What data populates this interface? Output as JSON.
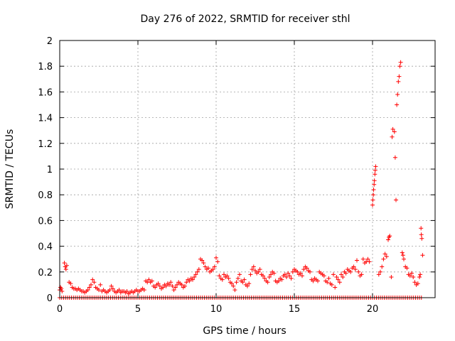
{
  "chart_data": {
    "type": "scatter",
    "title": "Day 276 of 2022, SRMTID for receiver sthl",
    "xlabel": "GPS time / hours",
    "ylabel": "SRMTID / TECUs",
    "xlim": [
      0,
      24
    ],
    "ylim": [
      0,
      2
    ],
    "x_ticks": [
      "0",
      "5",
      "10",
      "15",
      "20"
    ],
    "y_ticks": [
      "0",
      "0.2",
      "0.4",
      "0.6",
      "0.8",
      "1",
      "1.2",
      "1.4",
      "1.6",
      "1.8",
      "2"
    ],
    "x_tick_values": [
      0,
      5,
      10,
      15,
      20
    ],
    "y_tick_values": [
      0,
      0.2,
      0.4,
      0.6,
      0.8,
      1,
      1.2,
      1.4,
      1.6,
      1.8,
      2
    ],
    "grid": true,
    "marker": "+",
    "color": "#ff0000",
    "series": [
      {
        "name": "",
        "points": [
          [
            0.0,
            0.06
          ],
          [
            0.05,
            0.08
          ],
          [
            0.1,
            0.07
          ],
          [
            0.15,
            0.05
          ],
          [
            0.3,
            0.27
          ],
          [
            0.35,
            0.24
          ],
          [
            0.4,
            0.22
          ],
          [
            0.45,
            0.25
          ],
          [
            0.6,
            0.12
          ],
          [
            0.7,
            0.11
          ],
          [
            0.8,
            0.08
          ],
          [
            0.9,
            0.07
          ],
          [
            1.0,
            0.07
          ],
          [
            1.1,
            0.06
          ],
          [
            1.2,
            0.07
          ],
          [
            1.3,
            0.06
          ],
          [
            1.4,
            0.05
          ],
          [
            1.5,
            0.05
          ],
          [
            1.6,
            0.04
          ],
          [
            1.7,
            0.05
          ],
          [
            1.8,
            0.06
          ],
          [
            1.9,
            0.08
          ],
          [
            2.0,
            0.1
          ],
          [
            2.1,
            0.14
          ],
          [
            2.2,
            0.12
          ],
          [
            2.3,
            0.08
          ],
          [
            2.4,
            0.07
          ],
          [
            2.5,
            0.06
          ],
          [
            2.6,
            0.1
          ],
          [
            2.7,
            0.05
          ],
          [
            2.8,
            0.06
          ],
          [
            2.9,
            0.05
          ],
          [
            3.0,
            0.04
          ],
          [
            3.1,
            0.05
          ],
          [
            3.2,
            0.06
          ],
          [
            3.3,
            0.09
          ],
          [
            3.4,
            0.07
          ],
          [
            3.5,
            0.05
          ],
          [
            3.6,
            0.04
          ],
          [
            3.7,
            0.05
          ],
          [
            3.8,
            0.06
          ],
          [
            3.9,
            0.04
          ],
          [
            4.0,
            0.05
          ],
          [
            4.1,
            0.05
          ],
          [
            4.2,
            0.04
          ],
          [
            4.3,
            0.05
          ],
          [
            4.4,
            0.03
          ],
          [
            4.5,
            0.04
          ],
          [
            4.6,
            0.05
          ],
          [
            4.7,
            0.04
          ],
          [
            4.8,
            0.05
          ],
          [
            4.9,
            0.06
          ],
          [
            5.0,
            0.05
          ],
          [
            5.1,
            0.05
          ],
          [
            5.2,
            0.06
          ],
          [
            5.3,
            0.07
          ],
          [
            5.4,
            0.06
          ],
          [
            5.5,
            0.13
          ],
          [
            5.6,
            0.12
          ],
          [
            5.7,
            0.14
          ],
          [
            5.8,
            0.12
          ],
          [
            5.9,
            0.13
          ],
          [
            6.0,
            0.09
          ],
          [
            6.1,
            0.08
          ],
          [
            6.2,
            0.1
          ],
          [
            6.3,
            0.11
          ],
          [
            6.4,
            0.09
          ],
          [
            6.5,
            0.07
          ],
          [
            6.6,
            0.08
          ],
          [
            6.7,
            0.1
          ],
          [
            6.8,
            0.09
          ],
          [
            6.9,
            0.11
          ],
          [
            7.0,
            0.1
          ],
          [
            7.1,
            0.12
          ],
          [
            7.2,
            0.09
          ],
          [
            7.3,
            0.06
          ],
          [
            7.4,
            0.08
          ],
          [
            7.5,
            0.1
          ],
          [
            7.6,
            0.12
          ],
          [
            7.7,
            0.11
          ],
          [
            7.8,
            0.1
          ],
          [
            7.9,
            0.08
          ],
          [
            8.0,
            0.09
          ],
          [
            8.1,
            0.12
          ],
          [
            8.2,
            0.14
          ],
          [
            8.3,
            0.13
          ],
          [
            8.4,
            0.15
          ],
          [
            8.5,
            0.14
          ],
          [
            8.6,
            0.16
          ],
          [
            8.7,
            0.18
          ],
          [
            8.8,
            0.2
          ],
          [
            8.9,
            0.22
          ],
          [
            9.0,
            0.3
          ],
          [
            9.1,
            0.29
          ],
          [
            9.2,
            0.27
          ],
          [
            9.3,
            0.24
          ],
          [
            9.4,
            0.22
          ],
          [
            9.5,
            0.23
          ],
          [
            9.6,
            0.2
          ],
          [
            9.7,
            0.21
          ],
          [
            9.8,
            0.22
          ],
          [
            9.9,
            0.24
          ],
          [
            10.0,
            0.31
          ],
          [
            10.1,
            0.28
          ],
          [
            10.2,
            0.17
          ],
          [
            10.3,
            0.15
          ],
          [
            10.4,
            0.14
          ],
          [
            10.5,
            0.18
          ],
          [
            10.6,
            0.16
          ],
          [
            10.7,
            0.17
          ],
          [
            10.8,
            0.15
          ],
          [
            10.9,
            0.12
          ],
          [
            11.0,
            0.11
          ],
          [
            11.1,
            0.09
          ],
          [
            11.2,
            0.06
          ],
          [
            11.3,
            0.12
          ],
          [
            11.4,
            0.15
          ],
          [
            11.5,
            0.18
          ],
          [
            11.6,
            0.13
          ],
          [
            11.7,
            0.12
          ],
          [
            11.8,
            0.14
          ],
          [
            11.9,
            0.1
          ],
          [
            12.0,
            0.09
          ],
          [
            12.1,
            0.11
          ],
          [
            12.2,
            0.18
          ],
          [
            12.3,
            0.22
          ],
          [
            12.4,
            0.24
          ],
          [
            12.5,
            0.21
          ],
          [
            12.6,
            0.19
          ],
          [
            12.7,
            0.2
          ],
          [
            12.8,
            0.22
          ],
          [
            12.9,
            0.18
          ],
          [
            13.0,
            0.17
          ],
          [
            13.1,
            0.15
          ],
          [
            13.2,
            0.13
          ],
          [
            13.3,
            0.12
          ],
          [
            13.4,
            0.16
          ],
          [
            13.5,
            0.18
          ],
          [
            13.6,
            0.2
          ],
          [
            13.7,
            0.19
          ],
          [
            13.8,
            0.13
          ],
          [
            13.9,
            0.12
          ],
          [
            14.0,
            0.13
          ],
          [
            14.1,
            0.15
          ],
          [
            14.2,
            0.14
          ],
          [
            14.3,
            0.17
          ],
          [
            14.4,
            0.18
          ],
          [
            14.5,
            0.16
          ],
          [
            14.6,
            0.19
          ],
          [
            14.7,
            0.17
          ],
          [
            14.8,
            0.15
          ],
          [
            14.9,
            0.2
          ],
          [
            15.0,
            0.22
          ],
          [
            15.1,
            0.21
          ],
          [
            15.2,
            0.2
          ],
          [
            15.3,
            0.18
          ],
          [
            15.4,
            0.19
          ],
          [
            15.5,
            0.17
          ],
          [
            15.6,
            0.22
          ],
          [
            15.7,
            0.24
          ],
          [
            15.8,
            0.23
          ],
          [
            15.9,
            0.21
          ],
          [
            16.0,
            0.2
          ],
          [
            16.1,
            0.14
          ],
          [
            16.2,
            0.13
          ],
          [
            16.3,
            0.15
          ],
          [
            16.4,
            0.14
          ],
          [
            16.5,
            0.13
          ],
          [
            16.6,
            0.2
          ],
          [
            16.7,
            0.19
          ],
          [
            16.8,
            0.18
          ],
          [
            16.9,
            0.17
          ],
          [
            17.0,
            0.13
          ],
          [
            17.1,
            0.12
          ],
          [
            17.2,
            0.15
          ],
          [
            17.3,
            0.11
          ],
          [
            17.4,
            0.1
          ],
          [
            17.5,
            0.18
          ],
          [
            17.6,
            0.08
          ],
          [
            17.7,
            0.16
          ],
          [
            17.8,
            0.14
          ],
          [
            17.9,
            0.12
          ],
          [
            18.0,
            0.18
          ],
          [
            18.1,
            0.16
          ],
          [
            18.2,
            0.2
          ],
          [
            18.3,
            0.19
          ],
          [
            18.4,
            0.22
          ],
          [
            18.5,
            0.21
          ],
          [
            18.6,
            0.2
          ],
          [
            18.7,
            0.23
          ],
          [
            18.8,
            0.24
          ],
          [
            18.9,
            0.22
          ],
          [
            19.0,
            0.29
          ],
          [
            19.1,
            0.2
          ],
          [
            19.2,
            0.17
          ],
          [
            19.3,
            0.18
          ],
          [
            19.4,
            0.3
          ],
          [
            19.5,
            0.27
          ],
          [
            19.6,
            0.28
          ],
          [
            19.7,
            0.3
          ],
          [
            19.8,
            0.28
          ],
          [
            20.0,
            0.72
          ],
          [
            20.02,
            0.76
          ],
          [
            20.05,
            0.8
          ],
          [
            20.07,
            0.84
          ],
          [
            20.1,
            0.88
          ],
          [
            20.12,
            0.91
          ],
          [
            20.15,
            0.96
          ],
          [
            20.17,
            0.99
          ],
          [
            20.2,
            1.02
          ],
          [
            20.4,
            0.18
          ],
          [
            20.5,
            0.2
          ],
          [
            20.6,
            0.24
          ],
          [
            20.7,
            0.3
          ],
          [
            20.8,
            0.34
          ],
          [
            20.9,
            0.32
          ],
          [
            21.0,
            0.45
          ],
          [
            21.05,
            0.47
          ],
          [
            21.1,
            0.48
          ],
          [
            21.2,
            0.16
          ],
          [
            21.25,
            1.25
          ],
          [
            21.3,
            1.31
          ],
          [
            21.4,
            1.29
          ],
          [
            21.45,
            1.09
          ],
          [
            21.5,
            0.76
          ],
          [
            21.55,
            1.5
          ],
          [
            21.6,
            1.58
          ],
          [
            21.65,
            1.68
          ],
          [
            21.7,
            1.72
          ],
          [
            21.75,
            1.8
          ],
          [
            21.8,
            1.83
          ],
          [
            21.9,
            0.35
          ],
          [
            21.95,
            0.33
          ],
          [
            22.0,
            0.3
          ],
          [
            22.1,
            0.24
          ],
          [
            22.2,
            0.23
          ],
          [
            22.3,
            0.18
          ],
          [
            22.4,
            0.17
          ],
          [
            22.5,
            0.19
          ],
          [
            22.6,
            0.16
          ],
          [
            22.7,
            0.12
          ],
          [
            22.8,
            0.1
          ],
          [
            22.9,
            0.11
          ],
          [
            23.0,
            0.16
          ],
          [
            23.05,
            0.18
          ],
          [
            23.1,
            0.54
          ],
          [
            23.12,
            0.49
          ],
          [
            23.15,
            0.46
          ],
          [
            23.2,
            0.33
          ]
        ]
      },
      {
        "name": "",
        "baseline": true,
        "y": 0,
        "x_start": 0,
        "x_end": 23.2,
        "x_step": 0.125
      }
    ]
  }
}
